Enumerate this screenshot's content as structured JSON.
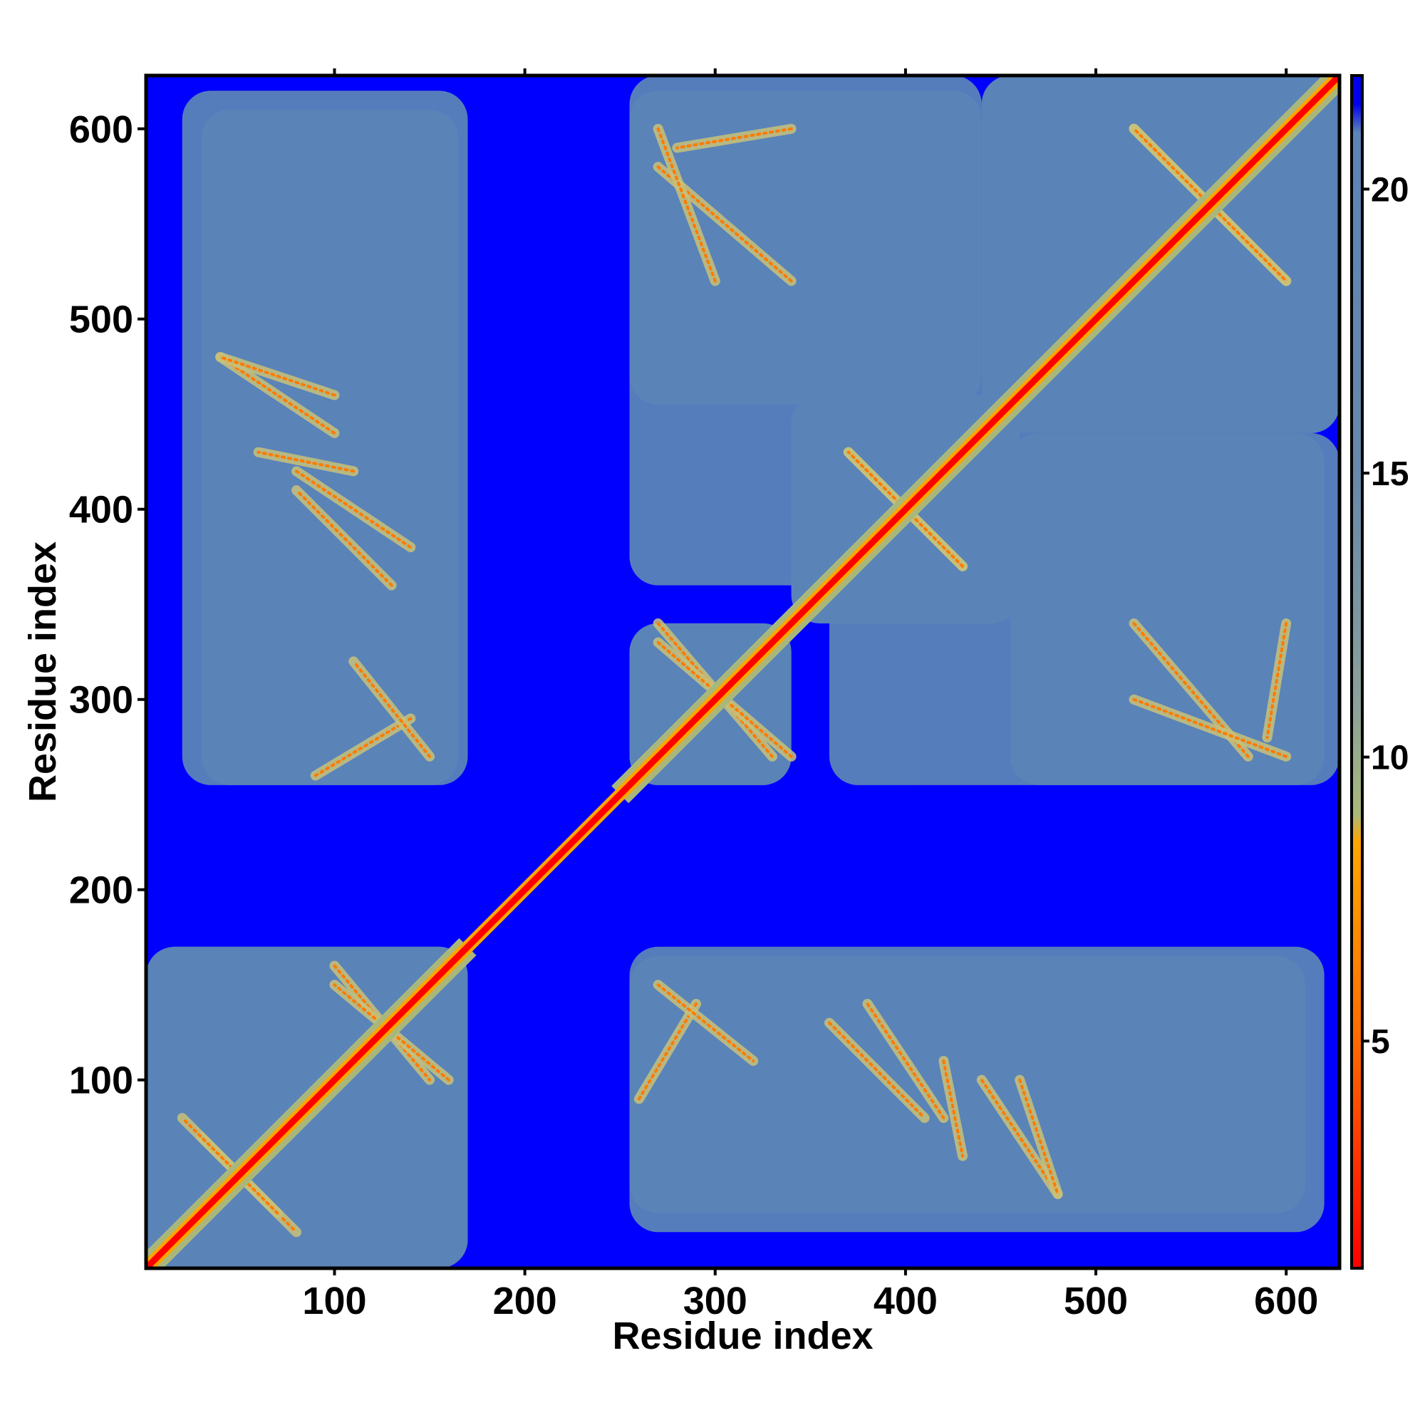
{
  "chart_data": {
    "type": "heatmap",
    "title": "",
    "xlabel": "Residue index",
    "ylabel": "Residue index",
    "xlim": [
      1,
      628
    ],
    "ylim": [
      1,
      628
    ],
    "x_ticks": [
      100,
      200,
      300,
      400,
      500,
      600
    ],
    "y_ticks": [
      100,
      200,
      300,
      400,
      500,
      600
    ],
    "colorbar": {
      "range": [
        1,
        22
      ],
      "ticks": [
        5,
        10,
        15,
        20
      ],
      "stops": [
        {
          "value": 1,
          "color": "#ff0000"
        },
        {
          "value": 5,
          "color": "#ff6a00"
        },
        {
          "value": 8.5,
          "color": "#ffa500"
        },
        {
          "value": 9,
          "color": "#a9b87a"
        },
        {
          "value": 11,
          "color": "#8aa09a"
        },
        {
          "value": 15,
          "color": "#6688aa"
        },
        {
          "value": 21,
          "color": "#5b84b7"
        },
        {
          "value": 21.5,
          "color": "#0000ee"
        },
        {
          "value": 22,
          "color": "#0000ee"
        }
      ]
    },
    "background_color": "#0000ff",
    "contact_color": "#5b84b7",
    "diagonal_color": "#ff0000",
    "domains": [
      {
        "start": 1,
        "end": 170
      },
      {
        "start": 250,
        "end": 628
      }
    ],
    "contact_regions": [
      {
        "x": [
          1,
          170
        ],
        "y": [
          1,
          170
        ]
      },
      {
        "x": [
          30,
          165
        ],
        "y": [
          255,
          610
        ]
      },
      {
        "x": [
          255,
          340
        ],
        "y": [
          255,
          340
        ]
      },
      {
        "x": [
          255,
          440
        ],
        "y": [
          360,
          620
        ]
      },
      {
        "x": [
          255,
          620
        ],
        "y": [
          20,
          170
        ]
      },
      {
        "x": [
          340,
          460
        ],
        "y": [
          340,
          460
        ]
      },
      {
        "x": [
          440,
          628
        ],
        "y": [
          440,
          628
        ]
      },
      {
        "x": [
          455,
          628
        ],
        "y": [
          255,
          440
        ]
      }
    ],
    "contact_lines": [
      {
        "x": [
          30,
          80
        ],
        "y": [
          70,
          20
        ]
      },
      {
        "x": [
          100,
          150
        ],
        "y": [
          160,
          100
        ]
      },
      {
        "x": [
          270,
          330
        ],
        "y": [
          340,
          270
        ]
      },
      {
        "x": [
          370,
          430
        ],
        "y": [
          430,
          370
        ]
      },
      {
        "x": [
          520,
          600
        ],
        "y": [
          600,
          520
        ]
      },
      {
        "x": [
          560,
          600
        ],
        "y": [
          560,
          520
        ]
      },
      {
        "x": [
          270,
          340
        ],
        "y": [
          580,
          520
        ]
      },
      {
        "x": [
          40,
          100
        ],
        "y": [
          480,
          440
        ]
      },
      {
        "x": [
          80,
          140
        ],
        "y": [
          420,
          380
        ]
      },
      {
        "x": [
          90,
          140
        ],
        "y": [
          260,
          290
        ]
      },
      {
        "x": [
          270,
          320
        ],
        "y": [
          150,
          110
        ]
      },
      {
        "x": [
          360,
          410
        ],
        "y": [
          130,
          80
        ]
      },
      {
        "x": [
          420,
          430
        ],
        "y": [
          110,
          60
        ]
      },
      {
        "x": [
          460,
          480
        ],
        "y": [
          100,
          40
        ]
      },
      {
        "x": [
          520,
          600
        ],
        "y": [
          300,
          270
        ]
      },
      {
        "x": [
          600,
          590
        ],
        "y": [
          340,
          280
        ]
      }
    ]
  }
}
